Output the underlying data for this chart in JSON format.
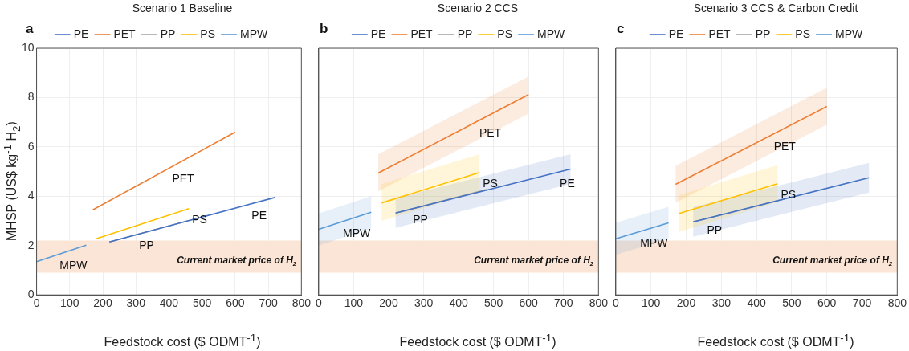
{
  "chart_data": [
    {
      "type": "line",
      "title": "Scenario 1 Baseline",
      "xlabel": "Feedstock cost ($ ODMT$^{-1}$)",
      "ylabel": "MHSP (US$ kg$^{-1}$ H$_{2}$)",
      "xlim": [
        0,
        800
      ],
      "xticks": [
        0,
        100,
        200,
        300,
        400,
        500,
        600,
        700,
        800
      ],
      "ylim": [
        0,
        10
      ],
      "yticks": [
        0,
        2,
        4,
        6,
        8,
        10
      ],
      "grid": true,
      "legend": "top",
      "bands": [
        {
          "axis": "y",
          "from": 0.9,
          "to": 2.2,
          "label": "Current market price of H$_{2}$",
          "color": "#fbe5d6"
        }
      ],
      "annotations": [
        "a",
        {
          "text": "PET",
          "x": 400,
          "y": 5.13
        },
        {
          "text": "PS",
          "x": 460,
          "y": 3.5
        },
        {
          "text": "PE",
          "x": 640,
          "y": 3.66
        },
        {
          "text": "PP",
          "x": 300,
          "y": 2.44
        },
        {
          "text": "MPW",
          "x": 60,
          "y": 1.62
        }
      ],
      "series": [
        {
          "name": "PE",
          "color": "#4472c4",
          "x": [
            220,
            720
          ],
          "values": [
            2.15,
            3.95
          ]
        },
        {
          "name": "PET",
          "color": "#ed7d31",
          "x": [
            170,
            600
          ],
          "values": [
            3.45,
            6.6
          ]
        },
        {
          "name": "PP",
          "color": "#a5a5a5",
          "x": [
            220,
            480
          ],
          "values": [
            2.15,
            3.08
          ]
        },
        {
          "name": "PS",
          "color": "#ffc000",
          "x": [
            180,
            460
          ],
          "values": [
            2.28,
            3.5
          ]
        },
        {
          "name": "MPW",
          "color": "#5b9bd5",
          "x": [
            0,
            150
          ],
          "values": [
            1.35,
            2.02
          ]
        }
      ]
    },
    {
      "type": "line",
      "title": "Scenario 2 CCS",
      "xlabel": "Feedstock cost ($ ODMT$^{-1}$)",
      "xlim": [
        0,
        800
      ],
      "xticks": [
        0,
        100,
        200,
        300,
        400,
        500,
        600,
        700,
        800
      ],
      "ylim": [
        0,
        10
      ],
      "yticks": [
        0,
        2,
        4,
        6,
        8,
        10
      ],
      "tick_labels": "x",
      "grid": true,
      "legend": "top",
      "bands": [
        {
          "axis": "y",
          "from": 0.9,
          "to": 2.2,
          "label": "Current market price of H$_{2}$",
          "color": "#fbe5d6"
        }
      ],
      "annotations": [
        "b",
        {
          "text": "PET",
          "x": 450,
          "y": 7.01
        },
        {
          "text": "PS",
          "x": 460,
          "y": 4.96
        },
        {
          "text": "PE",
          "x": 680,
          "y": 4.96
        },
        {
          "text": "PP",
          "x": 260,
          "y": 3.47
        },
        {
          "text": "MPW",
          "x": 60,
          "y": 2.94
        }
      ],
      "series": [
        {
          "name": "PE",
          "color": "#4472c4",
          "x": [
            220,
            720
          ],
          "values": [
            3.32,
            5.1
          ],
          "lower": [
            2.72,
            4.5
          ],
          "upper": [
            3.92,
            5.7
          ]
        },
        {
          "name": "PET",
          "color": "#ed7d31",
          "x": [
            170,
            600
          ],
          "values": [
            4.94,
            8.12
          ],
          "lower": [
            4.2,
            7.35
          ],
          "upper": [
            5.7,
            8.85
          ]
        },
        {
          "name": "PP",
          "color": "#a5a5a5",
          "x": [
            220,
            480
          ],
          "values": [
            3.32,
            4.27
          ]
        },
        {
          "name": "PS",
          "color": "#ffc000",
          "x": [
            180,
            460
          ],
          "values": [
            3.73,
            4.96
          ],
          "lower": [
            3.0,
            4.2
          ],
          "upper": [
            4.5,
            5.7
          ]
        },
        {
          "name": "MPW",
          "color": "#5b9bd5",
          "x": [
            0,
            150
          ],
          "values": [
            2.66,
            3.35
          ],
          "lower": [
            2.0,
            2.7
          ],
          "upper": [
            3.3,
            4.0
          ]
        }
      ]
    },
    {
      "type": "line",
      "title": "Scenario 3 CCS & Carbon Credit",
      "xlabel": "Feedstock cost ($ ODMT$^{-1}$)",
      "xlim": [
        0,
        800
      ],
      "xticks": [
        0,
        100,
        200,
        300,
        400,
        500,
        600,
        700,
        800
      ],
      "ylim": [
        0,
        10
      ],
      "yticks": [
        0,
        2,
        4,
        6,
        8,
        10
      ],
      "tick_labels": "x",
      "grid": true,
      "legend": "top",
      "bands": [
        {
          "axis": "y",
          "from": 0.9,
          "to": 2.2,
          "label": "Current market price of H$_{2}$",
          "color": "#fbe5d6"
        }
      ],
      "annotations": [
        "c",
        {
          "text": "PET",
          "x": 440,
          "y": 6.46
        },
        {
          "text": "PS",
          "x": 460,
          "y": 4.51
        },
        {
          "text": "PP",
          "x": 250,
          "y": 3.07
        },
        {
          "text": "MPW",
          "x": 60,
          "y": 2.54
        }
      ],
      "series": [
        {
          "name": "PE",
          "color": "#4472c4",
          "x": [
            220,
            720
          ],
          "values": [
            2.96,
            4.75
          ],
          "lower": [
            2.36,
            4.15
          ],
          "upper": [
            3.56,
            5.35
          ]
        },
        {
          "name": "PET",
          "color": "#ed7d31",
          "x": [
            170,
            600
          ],
          "values": [
            4.48,
            7.64
          ],
          "lower": [
            3.73,
            6.9
          ],
          "upper": [
            5.23,
            8.4
          ]
        },
        {
          "name": "PP",
          "color": "#a5a5a5",
          "x": [
            220,
            480
          ],
          "values": [
            2.96,
            3.89
          ]
        },
        {
          "name": "PS",
          "color": "#ffc000",
          "x": [
            180,
            460
          ],
          "values": [
            3.3,
            4.51
          ],
          "lower": [
            2.55,
            3.76
          ],
          "upper": [
            4.05,
            5.26
          ]
        },
        {
          "name": "MPW",
          "color": "#5b9bd5",
          "x": [
            0,
            150
          ],
          "values": [
            2.28,
            2.92
          ],
          "lower": [
            1.63,
            2.27
          ],
          "upper": [
            2.93,
            3.57
          ]
        }
      ]
    }
  ]
}
